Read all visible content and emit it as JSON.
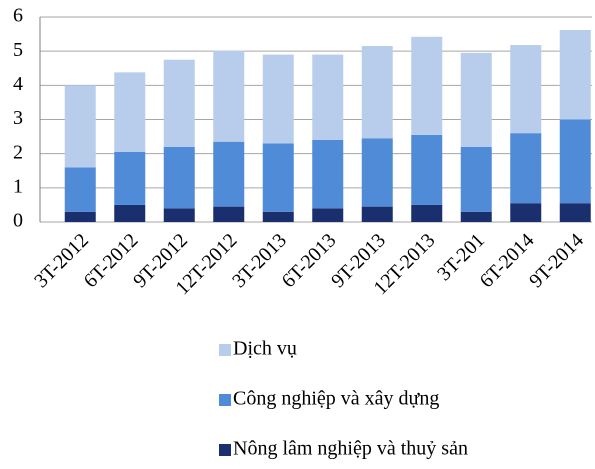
{
  "chart_data": {
    "type": "stacked_bar",
    "categories": [
      "3T-2012",
      "6T-2012",
      "9T-2012",
      "12T-2012",
      "3T-2013",
      "6T-2013",
      "9T-2013",
      "12T-2013",
      "3T-201",
      "6T-2014",
      "9T-2014"
    ],
    "series": [
      {
        "name": "Nông lâm nghiệp và thuỷ sản",
        "color": "#1a2f6e",
        "values": [
          0.3,
          0.5,
          0.4,
          0.45,
          0.3,
          0.4,
          0.45,
          0.5,
          0.3,
          0.55,
          0.55
        ]
      },
      {
        "name": "Công nghiệp và xây dựng",
        "color": "#4f8bd6",
        "values": [
          1.3,
          1.55,
          1.8,
          1.9,
          2.0,
          2.0,
          2.0,
          2.05,
          1.9,
          2.05,
          2.45
        ]
      },
      {
        "name": "Dịch vụ",
        "color": "#b8cdeb",
        "values": [
          2.4,
          2.33,
          2.55,
          2.67,
          2.6,
          2.5,
          2.7,
          2.87,
          2.75,
          2.58,
          2.62
        ]
      }
    ],
    "ylim": [
      0,
      6
    ],
    "yticks": [
      0,
      1,
      2,
      3,
      4,
      5,
      6
    ],
    "grid": true
  }
}
